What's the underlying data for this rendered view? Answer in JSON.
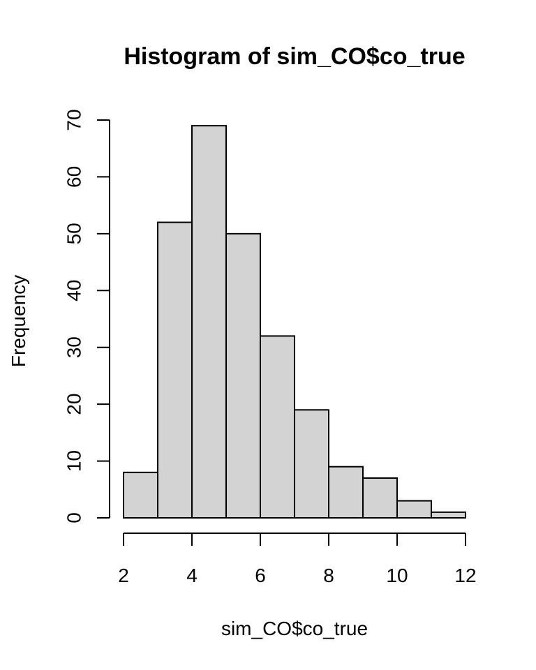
{
  "chart_data": {
    "type": "bar",
    "title": "Histogram of sim_CO$co_true",
    "xlabel": "sim_CO$co_true",
    "ylabel": "Frequency",
    "bins": [
      {
        "x0": 2,
        "x1": 3,
        "count": 8
      },
      {
        "x0": 3,
        "x1": 4,
        "count": 52
      },
      {
        "x0": 4,
        "x1": 5,
        "count": 69
      },
      {
        "x0": 5,
        "x1": 6,
        "count": 50
      },
      {
        "x0": 6,
        "x1": 7,
        "count": 32
      },
      {
        "x0": 7,
        "x1": 8,
        "count": 19
      },
      {
        "x0": 8,
        "x1": 9,
        "count": 9
      },
      {
        "x0": 9,
        "x1": 10,
        "count": 7
      },
      {
        "x0": 10,
        "x1": 11,
        "count": 3
      },
      {
        "x0": 11,
        "x1": 12,
        "count": 1
      }
    ],
    "xticks": [
      2,
      4,
      6,
      8,
      10,
      12
    ],
    "yticks": [
      0,
      10,
      20,
      30,
      40,
      50,
      60,
      70
    ],
    "xlim": [
      2,
      12
    ],
    "ylim": [
      0,
      70
    ],
    "grid": false,
    "bar_color": "#d3d3d3",
    "edge_color": "#000000"
  }
}
